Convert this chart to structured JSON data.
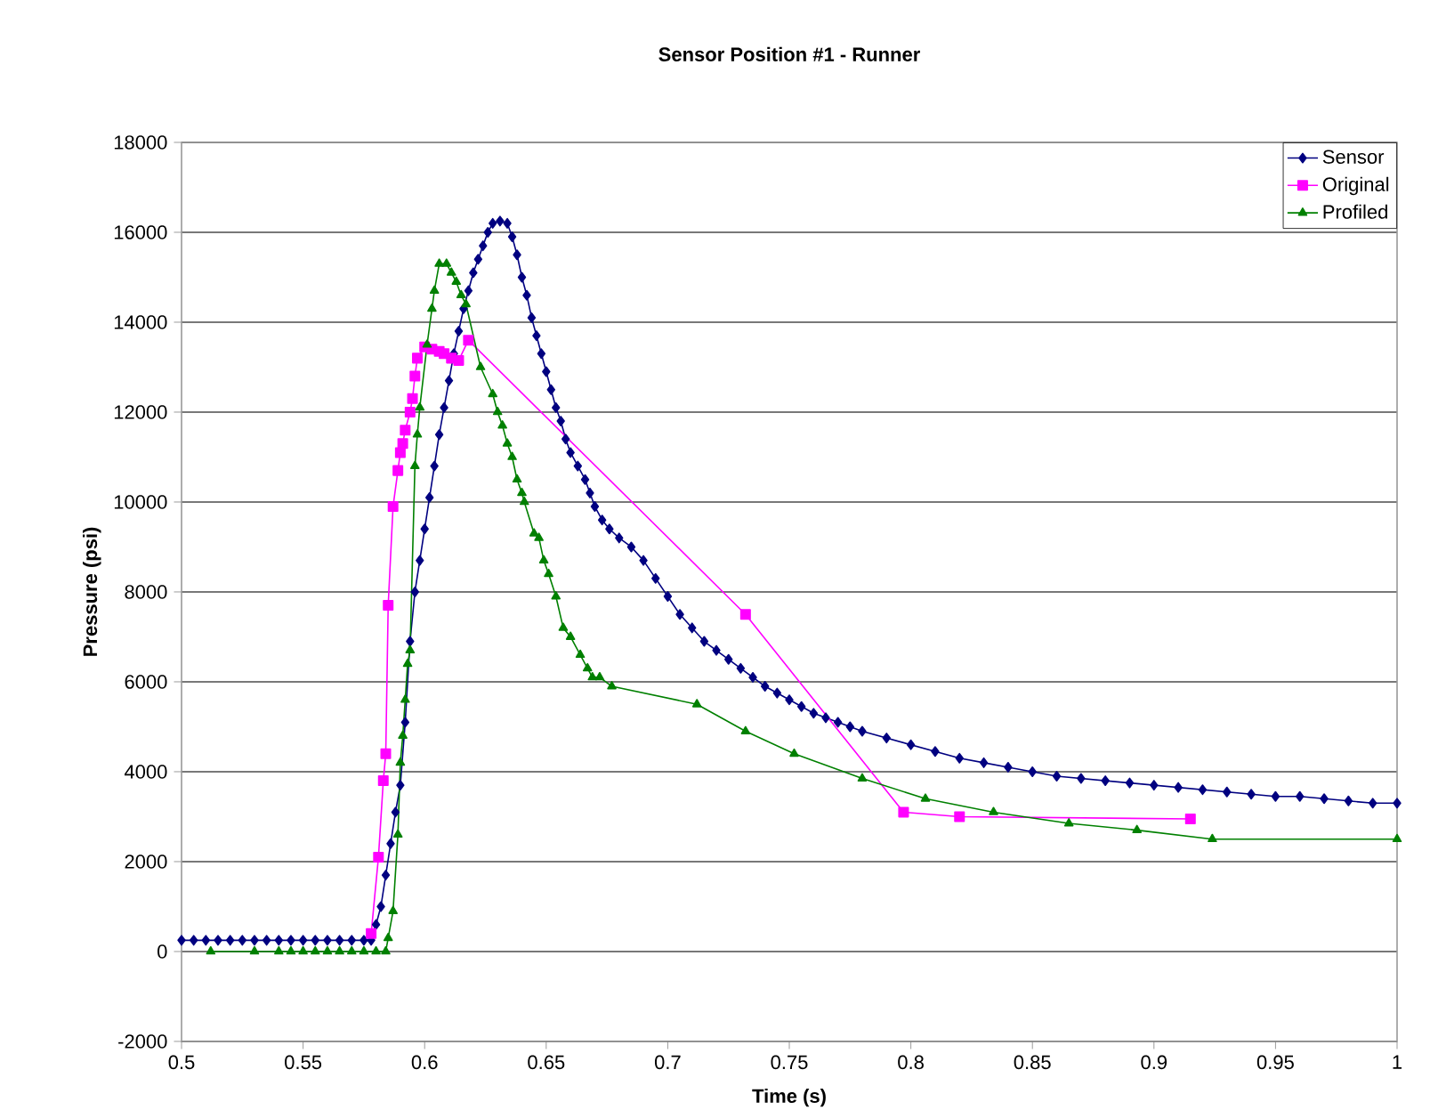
{
  "chart_data": {
    "type": "line",
    "title": "Sensor Position #1 - Runner",
    "xlabel": "Time (s)",
    "ylabel": "Pressure (psi)",
    "xlim": [
      0.5,
      1
    ],
    "xticks": [
      0.5,
      0.55,
      0.6,
      0.65,
      0.7,
      0.75,
      0.8,
      0.85,
      0.9,
      0.95,
      1
    ],
    "ylim": [
      -2000,
      18000
    ],
    "yticks": [
      -2000,
      0,
      2000,
      4000,
      6000,
      8000,
      10000,
      12000,
      14000,
      16000,
      18000
    ],
    "grid": "y",
    "legend": "top right",
    "line_style": "solid",
    "series": [
      {
        "name": "Sensor",
        "color": "#000080",
        "marker": "diamond",
        "x": [
          0.5,
          0.505,
          0.51,
          0.515,
          0.52,
          0.525,
          0.53,
          0.535,
          0.54,
          0.545,
          0.55,
          0.555,
          0.56,
          0.565,
          0.57,
          0.575,
          0.578,
          0.58,
          0.582,
          0.584,
          0.586,
          0.588,
          0.59,
          0.592,
          0.594,
          0.596,
          0.598,
          0.6,
          0.602,
          0.604,
          0.606,
          0.608,
          0.61,
          0.612,
          0.614,
          0.616,
          0.618,
          0.62,
          0.622,
          0.624,
          0.626,
          0.628,
          0.631,
          0.634,
          0.636,
          0.638,
          0.64,
          0.642,
          0.644,
          0.646,
          0.648,
          0.65,
          0.652,
          0.654,
          0.656,
          0.658,
          0.66,
          0.663,
          0.666,
          0.668,
          0.67,
          0.673,
          0.676,
          0.68,
          0.685,
          0.69,
          0.695,
          0.7,
          0.705,
          0.71,
          0.715,
          0.72,
          0.725,
          0.73,
          0.735,
          0.74,
          0.745,
          0.75,
          0.755,
          0.76,
          0.765,
          0.77,
          0.775,
          0.78,
          0.79,
          0.8,
          0.81,
          0.82,
          0.83,
          0.84,
          0.85,
          0.86,
          0.87,
          0.88,
          0.89,
          0.9,
          0.91,
          0.92,
          0.93,
          0.94,
          0.95,
          0.96,
          0.97,
          0.98,
          0.99,
          1.0
        ],
        "values": [
          250,
          250,
          250,
          250,
          250,
          250,
          250,
          250,
          250,
          250,
          250,
          250,
          250,
          250,
          250,
          250,
          250,
          600,
          1000,
          1700,
          2400,
          3100,
          3700,
          5100,
          6900,
          8000,
          8700,
          9400,
          10100,
          10800,
          11500,
          12100,
          12700,
          13300,
          13800,
          14300,
          14700,
          15100,
          15400,
          15700,
          16000,
          16200,
          16250,
          16200,
          15900,
          15500,
          15000,
          14600,
          14100,
          13700,
          13300,
          12900,
          12500,
          12100,
          11800,
          11400,
          11100,
          10800,
          10500,
          10200,
          9900,
          9600,
          9400,
          9200,
          9000,
          8700,
          8300,
          7900,
          7500,
          7200,
          6900,
          6700,
          6500,
          6300,
          6100,
          5900,
          5750,
          5600,
          5450,
          5300,
          5200,
          5100,
          5000,
          4900,
          4750,
          4600,
          4450,
          4300,
          4200,
          4100,
          4000,
          3900,
          3850,
          3800,
          3750,
          3700,
          3650,
          3600,
          3550,
          3500,
          3450,
          3450,
          3400,
          3350,
          3300,
          3300
        ]
      },
      {
        "name": "Original",
        "color": "#ff00ff",
        "marker": "square",
        "x": [
          0.578,
          0.581,
          0.583,
          0.584,
          0.585,
          0.587,
          0.589,
          0.59,
          0.591,
          0.592,
          0.594,
          0.595,
          0.596,
          0.597,
          0.6,
          0.603,
          0.606,
          0.608,
          0.611,
          0.614,
          0.618,
          0.732,
          0.797,
          0.82,
          0.915
        ],
        "values": [
          400,
          2100,
          3800,
          4400,
          7700,
          9900,
          10700,
          11100,
          11300,
          11600,
          12000,
          12300,
          12800,
          13200,
          13450,
          13400,
          13350,
          13300,
          13200,
          13150,
          13600,
          7500,
          3100,
          3000,
          2950
        ]
      },
      {
        "name": "Profiled",
        "color": "#008000",
        "marker": "triangle",
        "x": [
          0.512,
          0.53,
          0.54,
          0.545,
          0.55,
          0.555,
          0.56,
          0.565,
          0.57,
          0.575,
          0.58,
          0.584,
          0.585,
          0.587,
          0.589,
          0.59,
          0.591,
          0.592,
          0.593,
          0.594,
          0.596,
          0.597,
          0.598,
          0.601,
          0.603,
          0.604,
          0.606,
          0.609,
          0.611,
          0.613,
          0.615,
          0.617,
          0.623,
          0.628,
          0.63,
          0.632,
          0.634,
          0.636,
          0.638,
          0.64,
          0.641,
          0.645,
          0.647,
          0.649,
          0.651,
          0.654,
          0.657,
          0.66,
          0.664,
          0.667,
          0.669,
          0.672,
          0.677,
          0.712,
          0.732,
          0.752,
          0.78,
          0.806,
          0.834,
          0.865,
          0.893,
          0.924,
          1.0
        ],
        "values": [
          0,
          0,
          0,
          0,
          0,
          0,
          0,
          0,
          0,
          0,
          0,
          0,
          300,
          900,
          2600,
          4200,
          4800,
          5600,
          6400,
          6700,
          10800,
          11500,
          12100,
          13500,
          14300,
          14700,
          15300,
          15300,
          15100,
          14900,
          14600,
          14400,
          13000,
          12400,
          12000,
          11700,
          11300,
          11000,
          10500,
          10200,
          10000,
          9300,
          9200,
          8700,
          8400,
          7900,
          7200,
          7000,
          6600,
          6300,
          6100,
          6100,
          5900,
          5500,
          4900,
          4400,
          3850,
          3400,
          3100,
          2850,
          2700,
          2500,
          2500
        ]
      }
    ]
  }
}
